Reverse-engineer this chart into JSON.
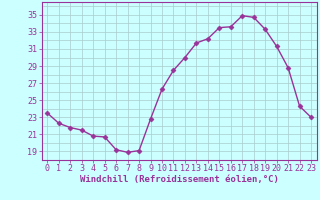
{
  "x": [
    0,
    1,
    2,
    3,
    4,
    5,
    6,
    7,
    8,
    9,
    10,
    11,
    12,
    13,
    14,
    15,
    16,
    17,
    18,
    19,
    20,
    21,
    22,
    23
  ],
  "y": [
    23.5,
    22.3,
    21.8,
    21.5,
    20.8,
    20.7,
    19.2,
    18.9,
    19.1,
    22.8,
    26.3,
    28.5,
    30.0,
    31.7,
    32.2,
    33.5,
    33.6,
    34.9,
    34.7,
    33.3,
    31.3,
    28.8,
    24.3,
    23.0
  ],
  "line_color": "#993399",
  "marker": "D",
  "marker_size": 2.5,
  "bg_color": "#ccffff",
  "grid_color": "#aacccc",
  "xlabel": "Windchill (Refroidissement éolien,°C)",
  "yticks": [
    19,
    21,
    23,
    25,
    27,
    29,
    31,
    33,
    35
  ],
  "xticks": [
    0,
    1,
    2,
    3,
    4,
    5,
    6,
    7,
    8,
    9,
    10,
    11,
    12,
    13,
    14,
    15,
    16,
    17,
    18,
    19,
    20,
    21,
    22,
    23
  ],
  "ylim": [
    18.0,
    36.5
  ],
  "xlim": [
    -0.5,
    23.5
  ],
  "xlabel_fontsize": 6.5,
  "tick_fontsize": 6.0,
  "label_color": "#993399",
  "axis_color": "#993399",
  "linewidth": 1.0
}
